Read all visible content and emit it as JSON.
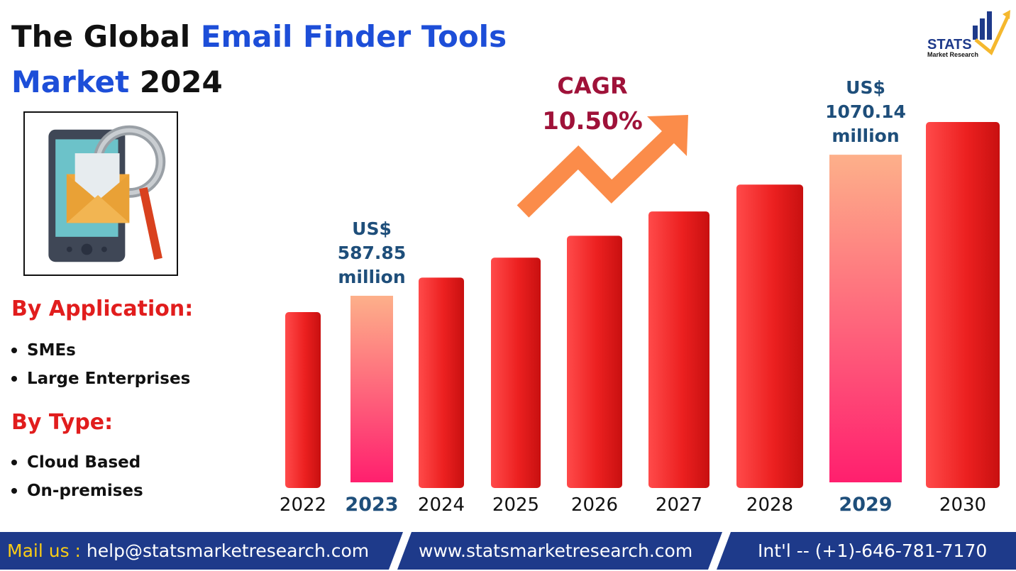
{
  "header": {
    "title_part1": "The Global ",
    "title_part2": "Email Finder Tools",
    "title_part3": "Market",
    "title_part4": " 2024"
  },
  "illustration": {
    "icon": "email-search-phone-icon"
  },
  "segments": {
    "application": {
      "heading": "By Application:",
      "items": [
        "SMEs",
        "Large Enterprises"
      ]
    },
    "type": {
      "heading": "By Type:",
      "items": [
        "Cloud Based",
        "On-premises"
      ]
    }
  },
  "logo": {
    "name": "STATS",
    "sub": "Market Research"
  },
  "chart_data": {
    "type": "bar",
    "categories": [
      "2022",
      "2023",
      "2024",
      "2025",
      "2026",
      "2027",
      "2028",
      "2029",
      "2030"
    ],
    "values": [
      532,
      587.85,
      650,
      718,
      793,
      876,
      968,
      1070.14,
      1182
    ],
    "highlight": [
      "2023",
      "2029"
    ],
    "annotations": [
      {
        "category": "2023",
        "lines": [
          "US$",
          "587.85",
          "million"
        ]
      },
      {
        "category": "2029",
        "lines": [
          "US$",
          "1070.14",
          "million"
        ]
      }
    ],
    "cagr": {
      "label": "CAGR",
      "value": "10.50%"
    },
    "ylim": [
      0,
      1200
    ],
    "grid": false,
    "colors": {
      "bar": "#e81c1c",
      "highlight_top": "#fdb08a",
      "highlight_bottom": "#ff1f6e",
      "highlight_label": "#1e4e7a",
      "cagr": "#9f1239",
      "arrow": "#fb8c4a"
    }
  },
  "footer": {
    "mail_label": "Mail us :",
    "email": "help@statsmarketresearch.com",
    "website": "www.statsmarketresearch.com",
    "phone": "Int'l -- (+1)-646-781-7170"
  }
}
